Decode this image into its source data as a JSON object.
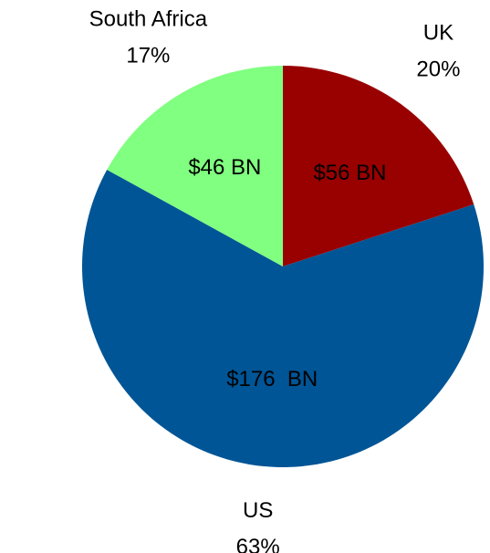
{
  "chart_data": {
    "type": "pie",
    "categories": [
      "UK",
      "US",
      "South Africa"
    ],
    "values": [
      20,
      63,
      17
    ],
    "value_labels": [
      "20%",
      "63%",
      "17%"
    ],
    "annotations": [
      "$56 BN",
      "$176  BN",
      "$46 BN"
    ],
    "colors": [
      "#990000",
      "#005596",
      "#80ff80"
    ]
  }
}
